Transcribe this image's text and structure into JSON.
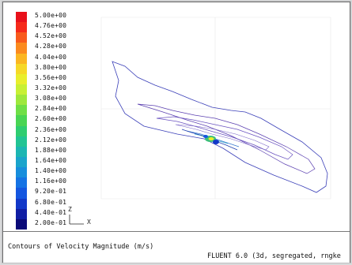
{
  "window": {
    "title": "Contours of Velocity Magnitude (m/s)",
    "solver_info": "FLUENT 6.0 (3d, segregated, rngke"
  },
  "legend": {
    "levels": [
      {
        "label": "5.00e+00",
        "color": "#e8101a"
      },
      {
        "label": "4.76e+00",
        "color": "#f52a1a"
      },
      {
        "label": "4.52e+00",
        "color": "#f85a1c"
      },
      {
        "label": "4.28e+00",
        "color": "#fb8a1e"
      },
      {
        "label": "4.04e+00",
        "color": "#fbb621"
      },
      {
        "label": "3.80e+00",
        "color": "#f6d827"
      },
      {
        "label": "3.56e+00",
        "color": "#e9ee2c"
      },
      {
        "label": "3.32e+00",
        "color": "#c8f034"
      },
      {
        "label": "3.08e+00",
        "color": "#9ee83c"
      },
      {
        "label": "2.84e+00",
        "color": "#6fdf46"
      },
      {
        "label": "2.60e+00",
        "color": "#49d553"
      },
      {
        "label": "2.36e+00",
        "color": "#2fcd70"
      },
      {
        "label": "2.12e+00",
        "color": "#22c493"
      },
      {
        "label": "1.88e+00",
        "color": "#1cb6b2"
      },
      {
        "label": "1.64e+00",
        "color": "#1aa4cb"
      },
      {
        "label": "1.40e+00",
        "color": "#178edc"
      },
      {
        "label": "1.16e+00",
        "color": "#1573e4"
      },
      {
        "label": "9.20e-01",
        "color": "#1456e0"
      },
      {
        "label": "6.80e-01",
        "color": "#1238c8"
      },
      {
        "label": "4.40e-01",
        "color": "#101ea4"
      },
      {
        "label": "2.00e-01",
        "color": "#0a0a78"
      }
    ]
  },
  "axes": {
    "z_label": "Z",
    "x_label": "X"
  }
}
